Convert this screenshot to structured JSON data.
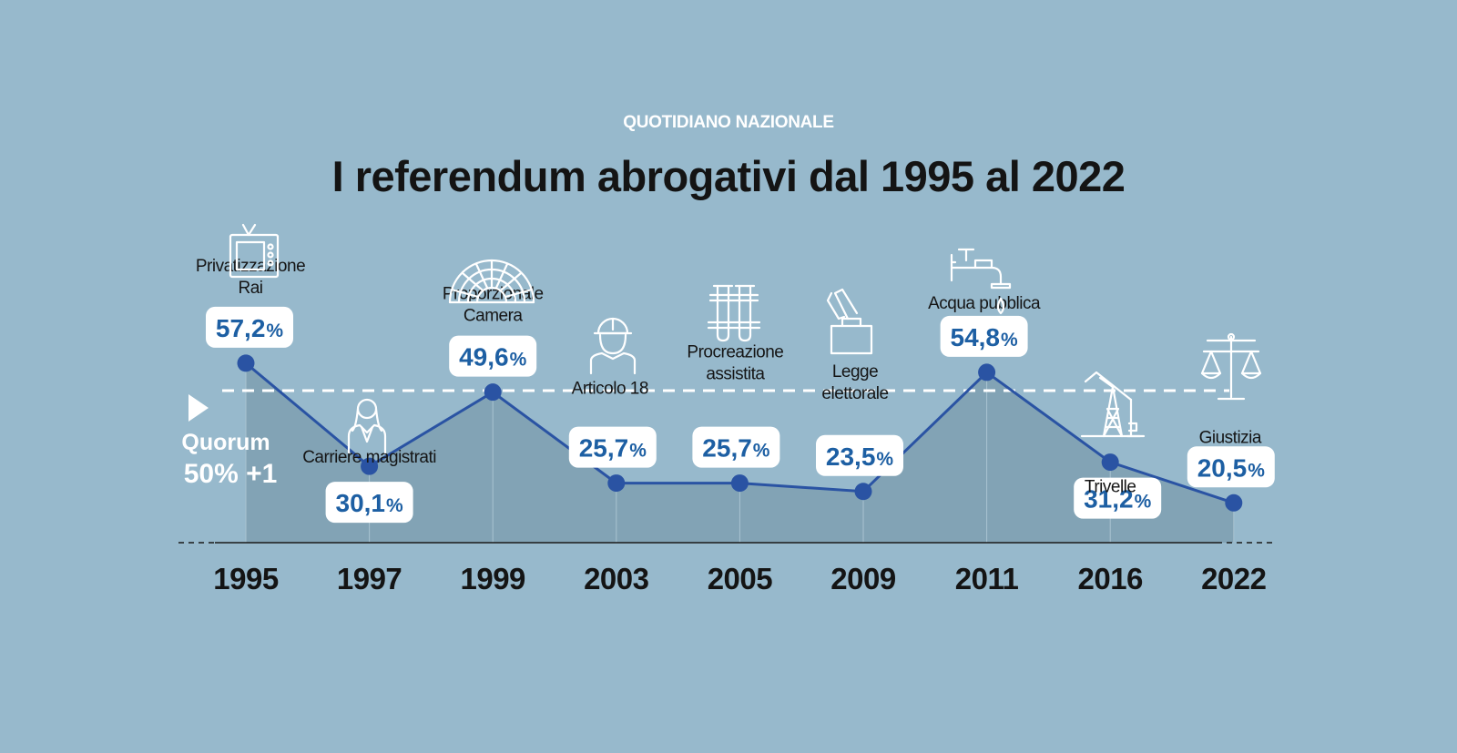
{
  "header": {
    "brand": "QUOTIDIANO NAZIONALE",
    "title": "I referendum abrogativi dal 1995 al 2022"
  },
  "quorum": {
    "line1": "Quorum",
    "line2": "50% +1",
    "value": 50
  },
  "colors": {
    "background": "#97b9cc",
    "line": "#2a53a3",
    "area": "#7e9fb0",
    "value_text": "#1d5fa3"
  },
  "chart_data": {
    "type": "area",
    "categories": [
      "1995",
      "1997",
      "1999",
      "2003",
      "2005",
      "2009",
      "2011",
      "2016",
      "2022"
    ],
    "values": [
      57.2,
      30.1,
      49.6,
      25.7,
      25.7,
      23.5,
      54.8,
      31.2,
      20.5
    ],
    "value_labels": [
      "57,2",
      "30,1",
      "49,6",
      "25,7",
      "25,7",
      "23,5",
      "54,8",
      "31,2",
      "20,5"
    ],
    "unit": "%",
    "topics": [
      [
        "Privatizzazione",
        "Rai"
      ],
      [
        "Carriere magistrati"
      ],
      [
        "Proporzionale",
        "Camera"
      ],
      [
        "Articolo 18"
      ],
      [
        "Procreazione",
        "assistita"
      ],
      [
        "Legge",
        "elettorale"
      ],
      [
        "Acqua pubblica"
      ],
      [
        "Trivelle"
      ],
      [
        "Giustizia"
      ]
    ],
    "icons": [
      "tv-icon",
      "magistrate-icon",
      "parliament-icon",
      "worker-icon",
      "test-tubes-icon",
      "ballot-box-icon",
      "water-tap-icon",
      "oil-pump-icon",
      "scales-icon"
    ],
    "reference_line": 50,
    "grid": false,
    "legend": "none"
  }
}
